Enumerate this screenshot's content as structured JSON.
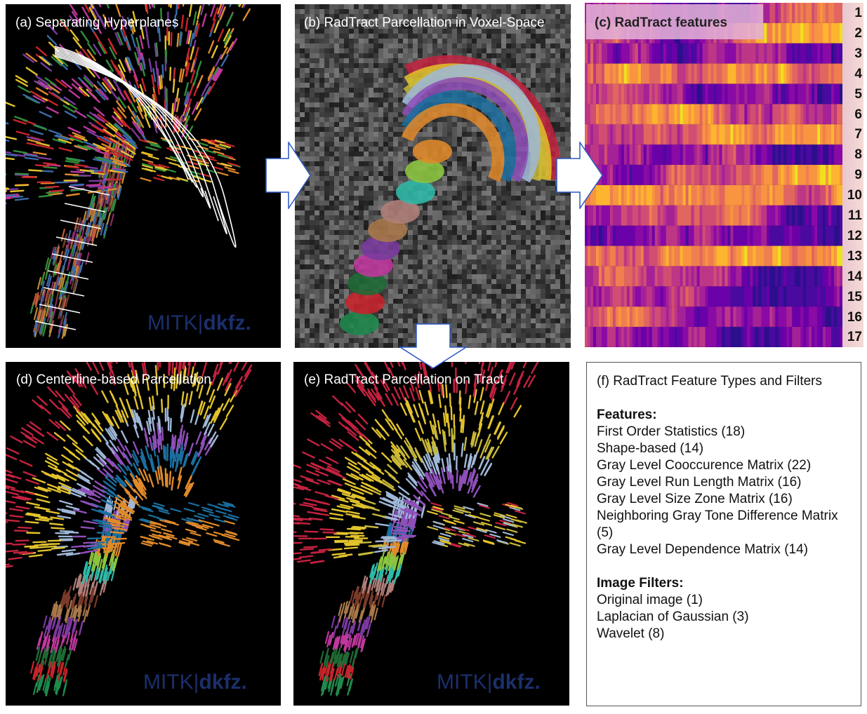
{
  "panels": {
    "a": {
      "title": "(a) Separating Hyperplanes"
    },
    "b": {
      "title": "(b) RadTract Parcellation in Voxel-Space"
    },
    "c": {
      "title": "(c) RadTract features"
    },
    "d": {
      "title": "(d) Centerline-based Parcellation"
    },
    "e": {
      "title": "(e) RadTract Parcellation on Tract"
    },
    "f": {
      "title": "(f) RadTract Feature Types and Filters"
    }
  },
  "logo": {
    "left": "MITK",
    "sep": "|",
    "right": "dkfz."
  },
  "row_labels": [
    "1",
    "2",
    "3",
    "4",
    "5",
    "6",
    "7",
    "8",
    "9",
    "10",
    "11",
    "12",
    "13",
    "14",
    "15",
    "16",
    "17"
  ],
  "features": {
    "heading": "Features:",
    "items": [
      "First Order Statistics (18)",
      "Shape-based (14)",
      "Gray Level Cooccurence Matrix (22)",
      "Gray Level Run Length Matrix (16)",
      "Gray Level Size Zone Matrix (16)",
      "Neighboring Gray Tone Difference Matrix",
      "(5)",
      "Gray Level Dependence Matrix (14)"
    ]
  },
  "filters": {
    "heading": "Image Filters:",
    "items": [
      "Original image (1)",
      "Laplacian of Gaussian (3)",
      "Wavelet (8)"
    ]
  },
  "parcel_colors": [
    "#1e8a4c",
    "#c8242b",
    "#1f6b35",
    "#c0389e",
    "#7a3a9e",
    "#a8784a",
    "#7a3b2a",
    "#b07f7a",
    "#2fb9a8",
    "#8cc63f",
    "#e08a2a",
    "#1b6fa0",
    "#8e4fb8",
    "#9fb8d8",
    "#c8b83a",
    "#e3c32c",
    "#c3223f"
  ]
}
